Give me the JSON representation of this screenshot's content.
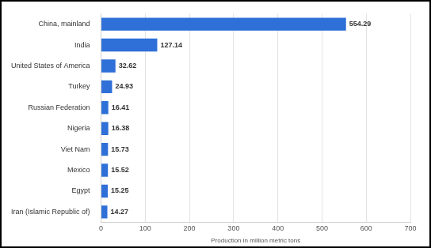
{
  "chart_data": {
    "type": "bar",
    "orientation": "horizontal",
    "x_label": "Production in million metric tons",
    "categories": [
      "China, mainland",
      "India",
      "United States of America",
      "Turkey",
      "Russian Federation",
      "Nigeria",
      "Viet Nam",
      "Mexico",
      "Egypt",
      "Iran (Islamic Republic of)"
    ],
    "values": [
      554.29,
      127.14,
      32.62,
      24.93,
      16.41,
      16.38,
      15.73,
      15.52,
      15.25,
      14.27
    ],
    "color": "#2e6fd8",
    "xlim": [
      0,
      700
    ],
    "xticks": [
      0,
      100,
      200,
      300,
      400,
      500,
      600,
      700
    ],
    "grid": true,
    "data_labels": true
  }
}
